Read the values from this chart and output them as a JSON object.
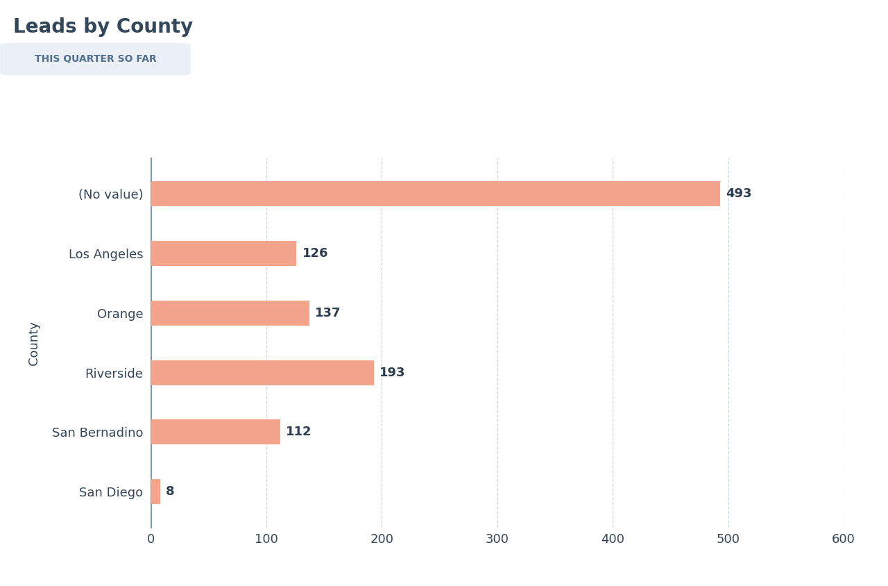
{
  "title": "Leads by County",
  "subtitle": "THIS QUARTER SO FAR",
  "categories": [
    "(No value)",
    "Los Angeles",
    "Orange",
    "Riverside",
    "San Bernadino",
    "San Diego"
  ],
  "values": [
    493,
    126,
    137,
    193,
    112,
    8
  ],
  "bar_color": "#F4A48A",
  "value_color": "#2d3e50",
  "label_color": "#33475b",
  "title_color": "#33475b",
  "subtitle_color": "#516f90",
  "subtitle_bg": "#eaf0f6",
  "grid_color": "#c8d6e5",
  "axis_line_color": "#7a9bb5",
  "bg_color": "#ffffff",
  "xlim": [
    0,
    600
  ],
  "xticks": [
    0,
    100,
    200,
    300,
    400,
    500,
    600
  ],
  "ylabel": "County",
  "title_fontsize": 20,
  "subtitle_fontsize": 10,
  "label_fontsize": 13,
  "value_fontsize": 13,
  "axis_label_fontsize": 13,
  "tick_fontsize": 13,
  "bar_height": 0.42
}
